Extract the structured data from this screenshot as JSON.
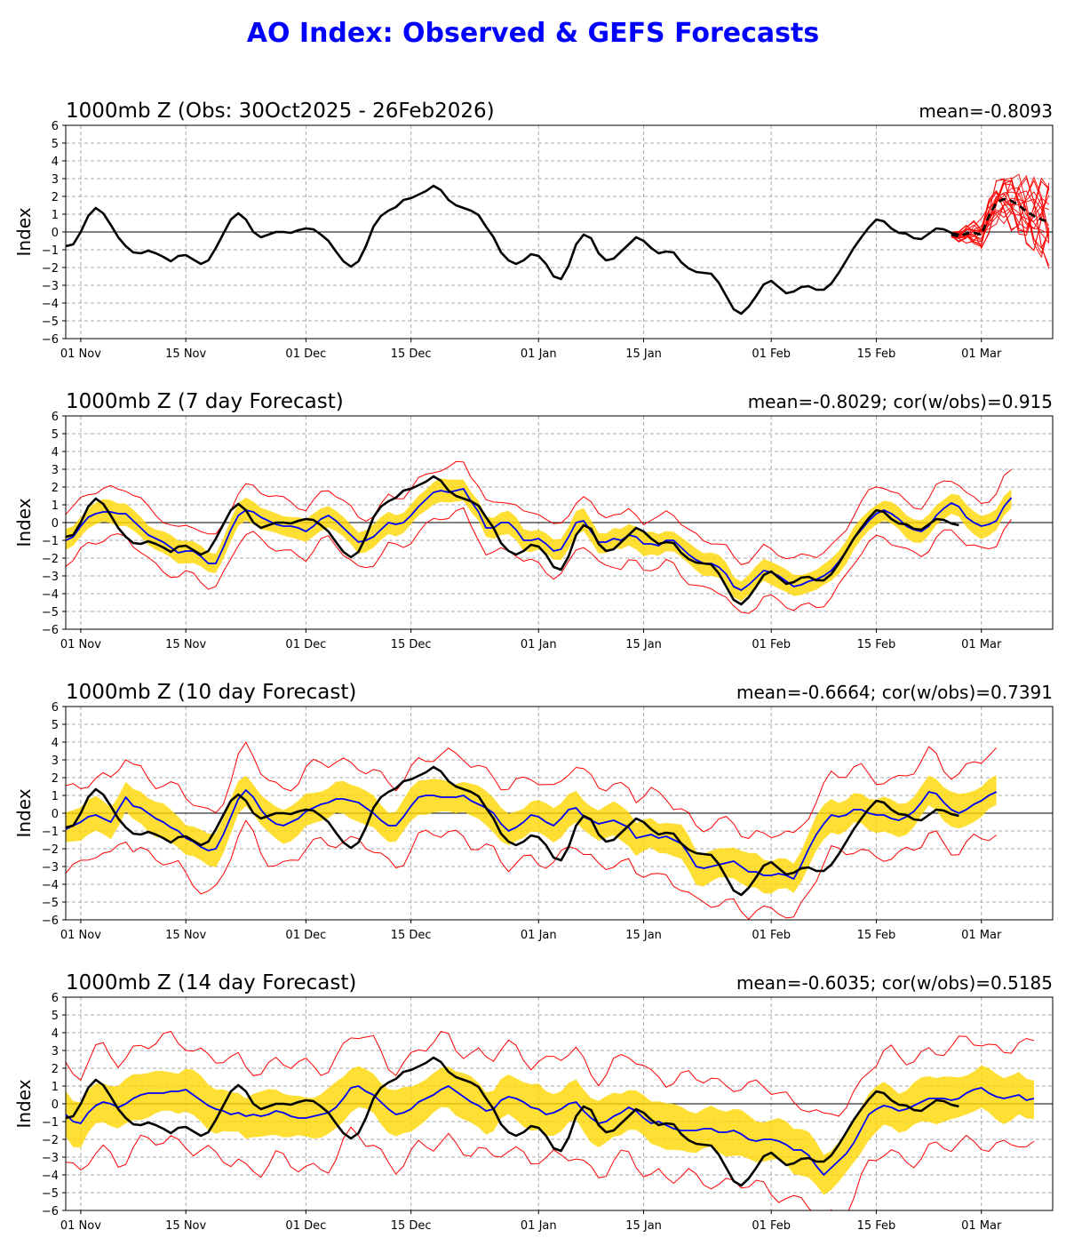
{
  "title": "AO Index: Observed & GEFS Forecasts",
  "colors": {
    "title": "#0000ff",
    "observed": "#000000",
    "ens_mean": "#0000ff",
    "spread": "#ffd700",
    "members": "#ff0000",
    "grid": "#aaaaaa"
  },
  "chart_data": [
    {
      "type": "line",
      "title": "1000mb Z (Obs: 30Oct2025 - 26Feb2026)",
      "stats": "mean=-0.8093",
      "ylabel": "Index",
      "ylim": [
        -6,
        6
      ],
      "yticks": [
        -6,
        -5,
        -4,
        -3,
        -2,
        -1,
        0,
        1,
        2,
        3,
        4,
        5,
        6
      ],
      "xticks": [
        "01 Nov",
        "15 Nov",
        "01 Dec",
        "15 Dec",
        "01 Jan",
        "15 Jan",
        "01 Feb",
        "15 Feb",
        "01 Mar"
      ],
      "observed": {
        "start": "2025-10-30",
        "values": [
          -0.8,
          -0.7,
          0.0,
          0.9,
          1.35,
          1.05,
          0.4,
          -0.3,
          -0.8,
          -1.15,
          -1.2,
          -1.05,
          -1.2,
          -1.4,
          -1.65,
          -1.35,
          -1.3,
          -1.55,
          -1.8,
          -1.6,
          -0.9,
          -0.1,
          0.7,
          1.05,
          0.7,
          0.0,
          -0.3,
          -0.15,
          0.0,
          0.0,
          -0.05,
          0.1,
          0.2,
          0.15,
          -0.15,
          -0.5,
          -1.1,
          -1.65,
          -1.95,
          -1.65,
          -0.8,
          0.3,
          0.9,
          1.2,
          1.4,
          1.8,
          1.9,
          2.1,
          2.3,
          2.6,
          2.35,
          1.8,
          1.5,
          1.35,
          1.2,
          0.95,
          0.3,
          -0.3,
          -1.15,
          -1.6,
          -1.8,
          -1.6,
          -1.25,
          -1.35,
          -1.8,
          -2.5,
          -2.65,
          -1.9,
          -0.7,
          -0.15,
          -0.35,
          -1.2,
          -1.6,
          -1.5,
          -1.1,
          -0.7,
          -0.3,
          -0.5,
          -0.9,
          -1.2,
          -1.1,
          -1.15,
          -1.7,
          -2.05,
          -2.25,
          -2.3,
          -2.35,
          -2.85,
          -3.6,
          -4.35,
          -4.6,
          -4.2,
          -3.6,
          -2.95,
          -2.75,
          -3.1,
          -3.45,
          -3.35,
          -3.1,
          -3.05,
          -3.25,
          -3.25,
          -2.9,
          -2.3,
          -1.6,
          -0.9,
          -0.3,
          0.25,
          0.7,
          0.6,
          0.2,
          -0.05,
          -0.1,
          -0.35,
          -0.4,
          -0.1,
          0.2,
          0.15,
          -0.05,
          -0.15
        ]
      },
      "forecast_mean": {
        "start": "2026-02-25",
        "values": [
          -0.15,
          -0.25,
          -0.1,
          -0.05,
          -0.15,
          0.9,
          1.65,
          1.85,
          1.75,
          1.5,
          1.15,
          0.9,
          0.7,
          0.55
        ]
      },
      "forecast_members": "GEFS ensemble members (red)"
    },
    {
      "type": "line",
      "title": "1000mb Z (7 day Forecast)",
      "stats": "mean=-0.8029; cor(w/obs)=0.915",
      "ylabel": "Index",
      "ylim": [
        -6,
        6
      ],
      "xticks": [
        "01 Nov",
        "15 Nov",
        "01 Dec",
        "15 Dec",
        "01 Jan",
        "15 Jan",
        "01 Feb",
        "15 Feb",
        "01 Mar"
      ],
      "forecast_ens_mean": {
        "start": "2025-10-30",
        "values": [
          -1.0,
          -0.8,
          -0.2,
          0.3,
          0.5,
          0.6,
          0.6,
          0.5,
          0.5,
          0.1,
          -0.3,
          -0.7,
          -0.9,
          -1.1,
          -1.4,
          -1.7,
          -1.6,
          -1.6,
          -1.9,
          -2.3,
          -2.3,
          -1.4,
          -0.4,
          0.4,
          0.7,
          0.6,
          0.3,
          0.1,
          -0.1,
          -0.2,
          -0.2,
          -0.3,
          -0.5,
          -0.2,
          0.2,
          0.4,
          0.1,
          -0.3,
          -0.7,
          -1.1,
          -1.0,
          -0.8,
          -0.4,
          0.0,
          -0.1,
          0.0,
          0.4,
          0.9,
          1.3,
          1.7,
          1.8,
          1.7,
          1.8,
          1.9,
          1.2,
          0.6,
          -0.3,
          -0.3,
          0.0,
          0.0,
          -0.4,
          -1.0,
          -1.0,
          -0.9,
          -1.2,
          -1.6,
          -1.5,
          -0.8,
          0.0,
          0.1,
          -0.5,
          -1.1,
          -1.1,
          -0.9,
          -1.0,
          -0.7,
          -0.8,
          -1.2,
          -1.2,
          -1.3,
          -1.0,
          -1.0,
          -1.4,
          -1.8,
          -2.1,
          -2.3,
          -2.3,
          -2.5,
          -2.9,
          -3.6,
          -3.8,
          -3.5,
          -3.1,
          -2.7,
          -2.8,
          -3.0,
          -3.3,
          -3.6,
          -3.5,
          -3.3,
          -3.2,
          -3.0,
          -2.7,
          -2.2,
          -1.6,
          -0.9,
          -0.4,
          0.1,
          0.5,
          0.7,
          0.5,
          0.2,
          -0.2,
          -0.4,
          -0.5,
          -0.2,
          0.4,
          0.8,
          1.1,
          0.9,
          0.3,
          0.0,
          -0.2,
          -0.1,
          0.1,
          0.9,
          1.4
        ]
      },
      "spread_halfwidth": 0.6,
      "member_envelope_halfwidth": 1.4
    },
    {
      "type": "line",
      "title": "1000mb Z (10 day Forecast)",
      "stats": "mean=-0.6664; cor(w/obs)=0.7391",
      "ylabel": "Index",
      "ylim": [
        -6,
        6
      ],
      "xticks": [
        "01 Nov",
        "15 Nov",
        "01 Dec",
        "15 Dec",
        "01 Jan",
        "15 Jan",
        "01 Feb",
        "15 Feb",
        "01 Mar"
      ],
      "forecast_ens_mean": {
        "start": "2025-10-30",
        "values": [
          -0.9,
          -0.7,
          -0.5,
          -0.2,
          -0.1,
          -0.3,
          -0.5,
          0.2,
          0.9,
          0.4,
          0.3,
          0.0,
          -0.3,
          -0.5,
          -0.8,
          -1.0,
          -1.4,
          -1.6,
          -1.9,
          -2.1,
          -2.0,
          -1.2,
          -0.2,
          0.8,
          1.3,
          0.9,
          0.2,
          -0.3,
          -0.6,
          -0.7,
          -0.5,
          -0.3,
          0.1,
          0.3,
          0.5,
          0.6,
          0.8,
          0.8,
          0.7,
          0.6,
          0.3,
          0.0,
          -0.4,
          -0.7,
          -0.7,
          -0.2,
          0.4,
          0.9,
          1.0,
          1.0,
          0.9,
          0.9,
          0.9,
          1.0,
          0.7,
          0.5,
          0.3,
          0.0,
          -0.6,
          -1.0,
          -0.8,
          -0.5,
          -0.1,
          -0.2,
          -0.5,
          -0.7,
          -0.3,
          0.2,
          0.3,
          -0.2,
          -0.4,
          -0.6,
          -0.5,
          -0.4,
          -0.6,
          -0.8,
          -1.4,
          -1.3,
          -1.2,
          -1.4,
          -1.3,
          -1.5,
          -1.7,
          -2.3,
          -3.0,
          -3.1,
          -3.0,
          -2.9,
          -2.8,
          -2.7,
          -3.0,
          -3.3,
          -3.3,
          -3.5,
          -3.5,
          -3.4,
          -3.5,
          -3.7,
          -2.9,
          -2.0,
          -1.2,
          -0.6,
          -0.1,
          -0.2,
          -0.1,
          0.2,
          0.2,
          0.0,
          -0.1,
          -0.1,
          -0.3,
          -0.4,
          -0.2,
          0.1,
          0.6,
          1.2,
          1.1,
          0.6,
          0.2,
          0.0,
          0.2,
          0.5,
          0.7,
          1.0,
          1.2
        ]
      },
      "spread_halfwidth": 0.9,
      "member_envelope_halfwidth": 2.2
    },
    {
      "type": "line",
      "title": "1000mb Z (14 day Forecast)",
      "stats": "mean=-0.6035; cor(w/obs)=0.5185",
      "ylabel": "Index",
      "ylim": [
        -6,
        6
      ],
      "xticks": [
        "01 Nov",
        "15 Nov",
        "01 Dec",
        "15 Dec",
        "01 Jan",
        "15 Jan",
        "01 Feb",
        "15 Feb",
        "01 Mar"
      ],
      "forecast_ens_mean": {
        "start": "2025-10-30",
        "values": [
          -0.6,
          -1.0,
          -1.1,
          -0.5,
          -0.1,
          0.1,
          0.0,
          -0.2,
          0.0,
          0.3,
          0.5,
          0.6,
          0.6,
          0.6,
          0.7,
          0.7,
          0.8,
          0.5,
          0.2,
          -0.1,
          -0.3,
          -0.4,
          -0.6,
          -0.5,
          -0.7,
          -0.6,
          -0.7,
          -0.6,
          -0.4,
          -0.5,
          -0.7,
          -0.8,
          -0.8,
          -0.7,
          -0.6,
          -0.5,
          -0.2,
          0.3,
          0.9,
          1.0,
          0.7,
          0.5,
          0.1,
          -0.3,
          -0.6,
          -0.5,
          -0.3,
          0.1,
          0.3,
          0.5,
          0.8,
          1.0,
          0.7,
          0.4,
          0.1,
          -0.1,
          -0.4,
          -0.3,
          0.2,
          0.4,
          0.3,
          0.1,
          -0.2,
          -0.3,
          -0.6,
          -0.5,
          -0.3,
          0.0,
          0.1,
          -0.4,
          -0.8,
          -1.1,
          -1.0,
          -0.7,
          -0.5,
          -0.2,
          -0.4,
          -0.8,
          -1.1,
          -1.0,
          -1.2,
          -1.4,
          -1.5,
          -1.5,
          -1.5,
          -1.4,
          -1.4,
          -1.6,
          -1.6,
          -1.5,
          -1.7,
          -2.0,
          -2.1,
          -2.0,
          -2.0,
          -2.1,
          -2.3,
          -2.6,
          -2.6,
          -2.9,
          -3.5,
          -4.0,
          -3.6,
          -3.2,
          -2.8,
          -2.2,
          -1.4,
          -0.6,
          -0.3,
          -0.1,
          -0.2,
          -0.4,
          -0.3,
          -0.1,
          0.1,
          0.3,
          0.3,
          0.3,
          0.2,
          0.3,
          0.6,
          0.8,
          0.9,
          0.6,
          0.4,
          0.3,
          0.4,
          0.5,
          0.2,
          0.3
        ]
      },
      "spread_halfwidth": 1.2,
      "member_envelope_halfwidth": 2.8
    }
  ]
}
